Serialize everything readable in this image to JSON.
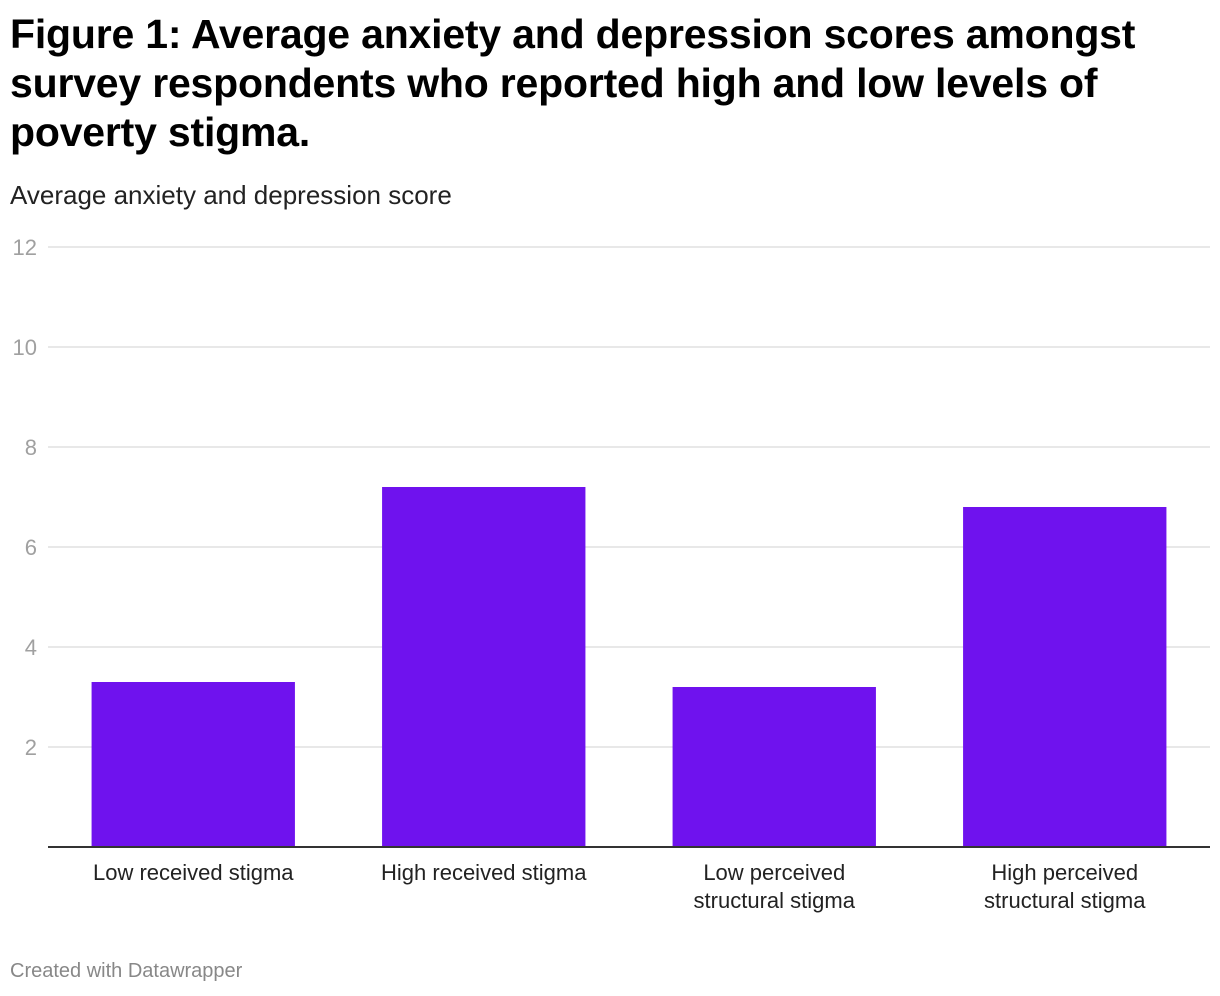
{
  "chart_data": {
    "type": "bar",
    "title": "Figure 1: Average anxiety and depression scores amongst survey respondents who reported high and low levels of poverty stigma.",
    "subtitle": "Average anxiety and depression score",
    "categories": [
      [
        "Low received stigma"
      ],
      [
        "High received stigma"
      ],
      [
        "Low perceived",
        "structural stigma"
      ],
      [
        "High perceived",
        "structural stigma"
      ]
    ],
    "values": [
      3.3,
      7.2,
      3.2,
      6.8
    ],
    "ylim": [
      0,
      12
    ],
    "yticks": [
      2,
      4,
      6,
      8,
      10,
      12
    ],
    "grid": true,
    "bar_color": "#6f12ee",
    "xlabel": "",
    "ylabel": ""
  },
  "footer": "Created with Datawrapper"
}
